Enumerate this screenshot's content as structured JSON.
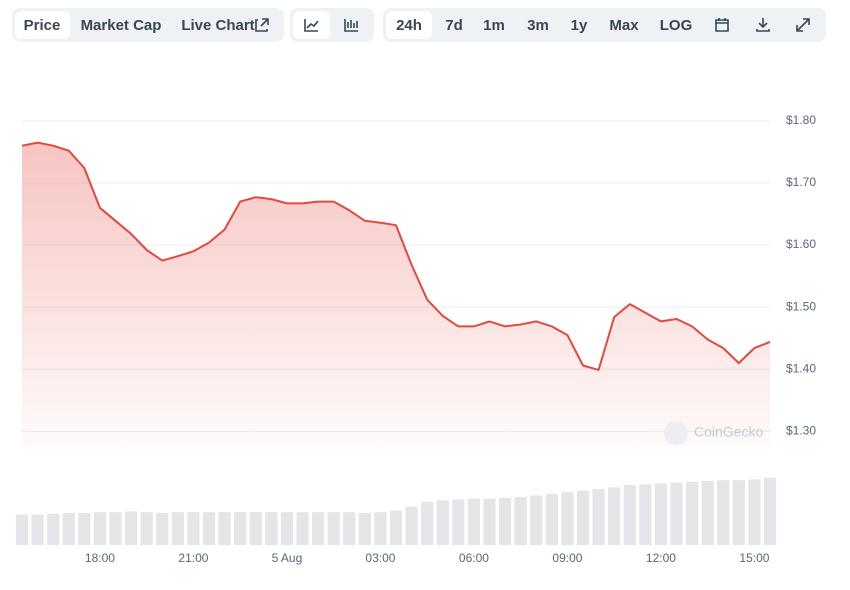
{
  "toolbar": {
    "tabs": [
      "Price",
      "Market Cap",
      "Live Chart"
    ],
    "ranges": [
      "24h",
      "7d",
      "1m",
      "3m",
      "1y",
      "Max",
      "LOG"
    ]
  },
  "watermark": "CoinGecko",
  "chart_data": {
    "type": "area",
    "categories": [
      null,
      null,
      null,
      null,
      null,
      "18:00",
      null,
      null,
      null,
      null,
      null,
      "21:00",
      null,
      null,
      null,
      null,
      null,
      "5 Aug",
      null,
      null,
      null,
      null,
      null,
      "03:00",
      null,
      null,
      null,
      null,
      null,
      "06:00",
      null,
      null,
      null,
      null,
      null,
      "09:00",
      null,
      null,
      null,
      null,
      null,
      "12:00",
      null,
      null,
      null,
      null,
      null,
      "15:00",
      null
    ],
    "series": [
      {
        "color": "#e5483f",
        "values": [
          1.76,
          1.765,
          1.76,
          1.752,
          1.724,
          1.66,
          1.639,
          1.618,
          1.592,
          1.575,
          1.582,
          1.59,
          1.604,
          1.625,
          1.67,
          1.677,
          1.674,
          1.667,
          1.667,
          1.67,
          1.67,
          1.656,
          1.639,
          1.636,
          1.632,
          1.568,
          1.512,
          1.486,
          1.469,
          1.469,
          1.477,
          1.469,
          1.472,
          1.477,
          1.469,
          1.455,
          1.406,
          1.399,
          1.484,
          1.505,
          1.491,
          1.477,
          1.481,
          1.469,
          1.448,
          1.434,
          1.41,
          1.434,
          1.444
        ]
      }
    ],
    "ylim": [
      1.27,
      1.84
    ],
    "yticks": [
      {
        "value": 1.3,
        "label": "$1.30"
      },
      {
        "value": 1.4,
        "label": "$1.40"
      },
      {
        "value": 1.5,
        "label": "$1.50"
      },
      {
        "value": 1.6,
        "label": "$1.60"
      },
      {
        "value": 1.7,
        "label": "$1.70"
      },
      {
        "value": 1.8,
        "label": "$1.80"
      }
    ],
    "grid": true,
    "volume": {
      "color": "#e3e5e8",
      "axis": "y2",
      "values": [
        38,
        38,
        39,
        40,
        40,
        41,
        41,
        42,
        41,
        40,
        41,
        41,
        41,
        41,
        41,
        41,
        41,
        41,
        41,
        41,
        41,
        41,
        40,
        41,
        43,
        48,
        54,
        56,
        57,
        58,
        58,
        59,
        60,
        62,
        64,
        66,
        68,
        70,
        72,
        75,
        76,
        77,
        78,
        79,
        80,
        81,
        81,
        82,
        84
      ]
    },
    "y2lim": [
      0,
      100
    ]
  }
}
